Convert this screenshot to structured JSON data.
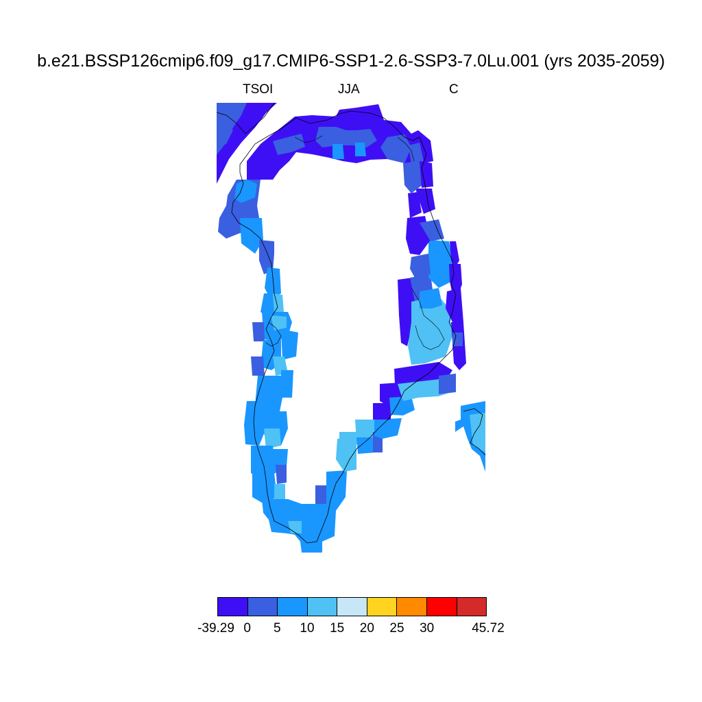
{
  "title": "b.e21.BSSP126cmip6.f09_g17.CMIP6-SSP1-2.6-SSP3-7.0Lu.001 (yrs 2035-2059)",
  "subtitle": {
    "variable": "TSOI",
    "season": "JJA",
    "units": "C"
  },
  "colorbar": {
    "colors": [
      "#3e0ff5",
      "#3a5fe0",
      "#1a96ff",
      "#4fc1f5",
      "#c7e7f9",
      "#fed421",
      "#ff8a00",
      "#fe0000",
      "#d42a2a"
    ],
    "labels": [
      "-39.29",
      "0",
      "5",
      "10",
      "15",
      "20",
      "25",
      "30",
      "",
      "45.72"
    ]
  },
  "map": {
    "region": "Greenland coastal ring",
    "ice_sheet_interior": "no data"
  }
}
